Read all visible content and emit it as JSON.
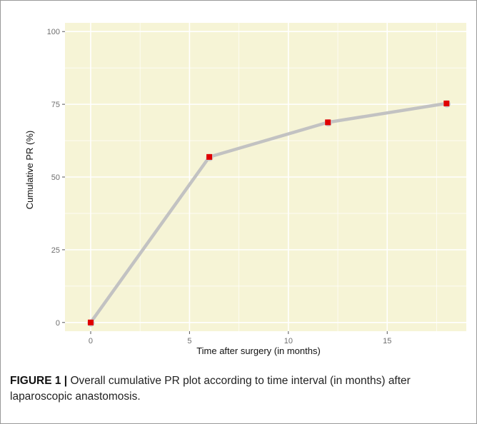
{
  "figure": {
    "label": "FIGURE 1 |",
    "caption": " Overall cumulative PR plot according to time interval (in months) after laparoscopic anastomosis."
  },
  "chart_data": {
    "type": "line",
    "title": "",
    "xlabel": "Time after surgery (in months)",
    "ylabel": "Cumulative PR (%)",
    "x": [
      0,
      6,
      12,
      18
    ],
    "values": [
      0,
      56.9,
      68.8,
      75.3
    ],
    "xlim": [
      -1.3,
      19
    ],
    "ylim": [
      -3,
      103
    ],
    "xticks": [
      0,
      5,
      10,
      15
    ],
    "yticks": [
      0,
      25,
      50,
      75,
      100
    ],
    "grid": true,
    "legend": "none",
    "colors": {
      "panel": "#f6f4d6",
      "line": "#c2c2c2",
      "marker": "#e00000"
    }
  }
}
